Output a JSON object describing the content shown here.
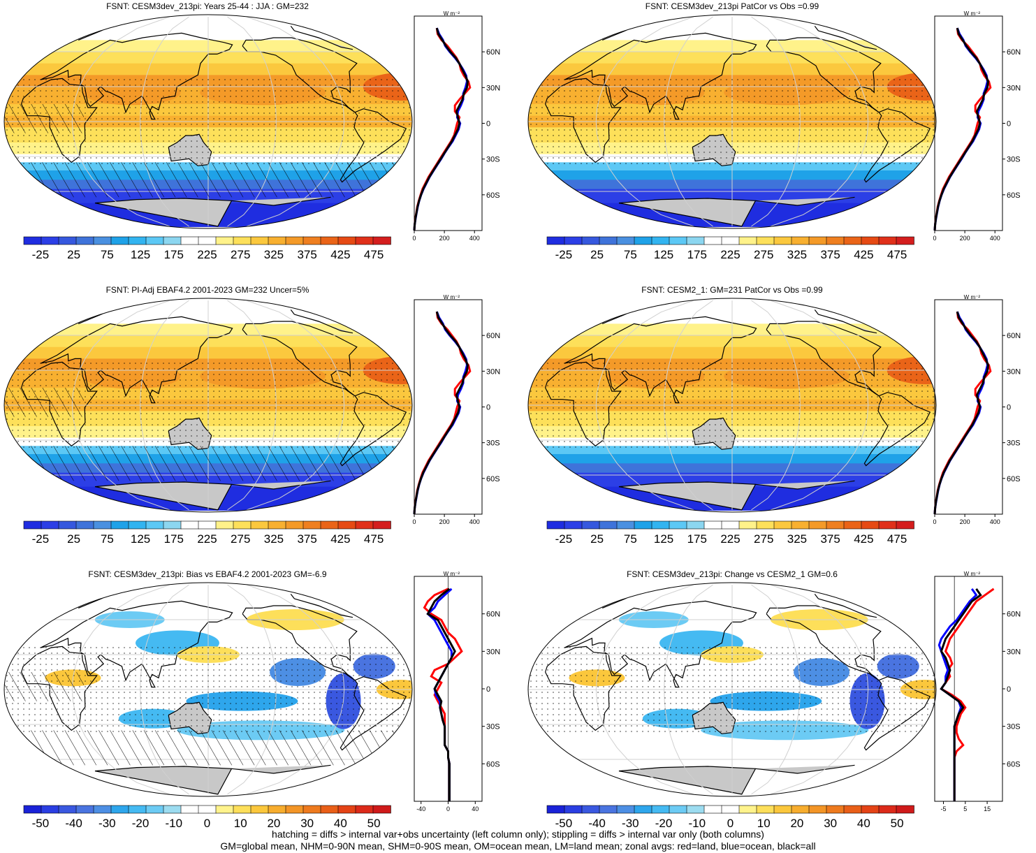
{
  "panels": [
    {
      "title": "FSNT: CESM3dev_213pi: Years 25-44 : JJA : GM=232",
      "kind": "mean",
      "hatch": true,
      "colorbar": {
        "labels": [
          "-25",
          "25",
          "75",
          "125",
          "175",
          "225",
          "275",
          "325",
          "375",
          "425",
          "475"
        ]
      },
      "zonal": {
        "unit": "W m⁻²",
        "xticks": [
          "0",
          "200",
          "400"
        ],
        "yticks": [
          "60N",
          "30N",
          "0",
          "30S",
          "60S"
        ]
      }
    },
    {
      "title": "FSNT: CESM3dev_213pi PatCor vs Obs =0.99",
      "kind": "mean",
      "hatch": false,
      "colorbar": {
        "labels": [
          "-25",
          "25",
          "75",
          "125",
          "175",
          "225",
          "275",
          "325",
          "375",
          "425",
          "475"
        ]
      },
      "zonal": {
        "unit": "W m⁻²",
        "xticks": [
          "0",
          "200",
          "400"
        ],
        "yticks": [
          "60N",
          "30N",
          "0",
          "30S",
          "60S"
        ]
      }
    },
    {
      "title": "FSNT: PI-Adj EBAF4.2 2001-2023 GM=232 Uncer=5%",
      "kind": "mean",
      "hatch": true,
      "colorbar": {
        "labels": [
          "-25",
          "25",
          "75",
          "125",
          "175",
          "225",
          "275",
          "325",
          "375",
          "425",
          "475"
        ]
      },
      "zonal": {
        "unit": "W m⁻²",
        "xticks": [
          "0",
          "200",
          "400"
        ],
        "yticks": [
          "60N",
          "30N",
          "0",
          "30S",
          "60S"
        ]
      }
    },
    {
      "title": "FSNT: CESM2_1: GM=231 PatCor vs Obs =0.99",
      "kind": "mean",
      "hatch": false,
      "colorbar": {
        "labels": [
          "-25",
          "25",
          "75",
          "125",
          "175",
          "225",
          "275",
          "325",
          "375",
          "425",
          "475"
        ]
      },
      "zonal": {
        "unit": "W m⁻²",
        "xticks": [
          "0",
          "200",
          "400"
        ],
        "yticks": [
          "60N",
          "30N",
          "0",
          "30S",
          "60S"
        ]
      }
    },
    {
      "title": "FSNT: CESM3dev_213pi: Bias vs EBAF4.2 2001-2023 GM=-6.9",
      "kind": "diff",
      "hatch": true,
      "colorbar": {
        "labels": [
          "-50",
          "-40",
          "-30",
          "-20",
          "-10",
          "0",
          "10",
          "20",
          "30",
          "40",
          "50"
        ]
      },
      "zonal": {
        "unit": "W m⁻²",
        "xticks": [
          "-40",
          "0",
          "40"
        ],
        "yticks": [
          "60N",
          "30N",
          "0",
          "30S",
          "60S"
        ]
      }
    },
    {
      "title": "FSNT: CESM3dev_213pi: Change vs CESM2_1 GM=0.6",
      "kind": "diff",
      "hatch": false,
      "colorbar": {
        "labels": [
          "-50",
          "-40",
          "-30",
          "-20",
          "-10",
          "0",
          "10",
          "20",
          "30",
          "40",
          "50"
        ]
      },
      "zonal": {
        "unit": "W m⁻²",
        "xticks": [
          "-5",
          "5",
          "15"
        ],
        "yticks": [
          "60N",
          "30N",
          "0",
          "30S",
          "60S"
        ]
      }
    }
  ],
  "colors": {
    "mean_scale": [
      "#1f2de0",
      "#2c3fe6",
      "#3658de",
      "#3f73da",
      "#4a90e0",
      "#1fa2e8",
      "#32b4f0",
      "#5cc8f5",
      "#8cd6f0",
      "#ffffff",
      "#ffffff",
      "#fff28a",
      "#fde05a",
      "#fbc83e",
      "#f8b030",
      "#f49a28",
      "#ef7f20",
      "#ea6418",
      "#e64a14",
      "#e0301a",
      "#d41e1e"
    ],
    "diff_scale": [
      "#1a22d8",
      "#2a3ee2",
      "#3a58e0",
      "#4a74e0",
      "#4d8fe4",
      "#2ea6ec",
      "#45baf2",
      "#6ccbf4",
      "#9cdcf0",
      "#ffffff",
      "#ffffff",
      "#fff38c",
      "#fddf5a",
      "#fbc73c",
      "#f7ad2e",
      "#f39526",
      "#ee7a1e",
      "#e95f18",
      "#e44316",
      "#dc2a1a",
      "#cf1a1a"
    ],
    "land_gray": "#c8c8c8",
    "zonal_land": "#ff0000",
    "zonal_ocean": "#0000ff",
    "zonal_all": "#000000"
  },
  "zonal_data": {
    "lat": [
      80,
      75,
      70,
      65,
      60,
      55,
      50,
      45,
      40,
      35,
      30,
      25,
      20,
      15,
      10,
      5,
      0,
      -5,
      -10,
      -15,
      -20,
      -25,
      -30,
      -35,
      -40,
      -45,
      -50,
      -55,
      -60,
      -65,
      -70,
      -75,
      -80,
      -85,
      -90
    ],
    "mean": {
      "all": [
        150,
        160,
        185,
        210,
        240,
        275,
        300,
        320,
        340,
        355,
        350,
        330,
        320,
        300,
        280,
        290,
        300,
        290,
        270,
        250,
        225,
        200,
        175,
        150,
        125,
        100,
        80,
        60,
        45,
        32,
        22,
        15,
        8,
        3,
        0
      ],
      "land": [
        150,
        155,
        180,
        220,
        250,
        280,
        300,
        310,
        330,
        360,
        370,
        335,
        300,
        270,
        270,
        300,
        285,
        275,
        265,
        245,
        220,
        195,
        170,
        145,
        120,
        95,
        75,
        55,
        42,
        30,
        20,
        14,
        7,
        3,
        0
      ],
      "ocean": [
        150,
        165,
        190,
        205,
        235,
        270,
        300,
        325,
        345,
        350,
        340,
        325,
        325,
        310,
        290,
        285,
        305,
        295,
        275,
        255,
        228,
        202,
        178,
        152,
        127,
        102,
        82,
        62,
        46,
        33,
        23,
        16,
        9,
        3,
        0
      ]
    },
    "bias": {
      "all": [
        2,
        -10,
        -20,
        -25,
        -30,
        -15,
        -10,
        -5,
        0,
        5,
        10,
        5,
        0,
        -5,
        -10,
        -15,
        -20,
        -15,
        -10,
        -12,
        -10,
        -8,
        -5,
        -5,
        -5,
        -5,
        0,
        0,
        2,
        2,
        2,
        2,
        2,
        2,
        2
      ],
      "land": [
        0,
        -20,
        -30,
        -35,
        -25,
        -10,
        -5,
        0,
        10,
        15,
        20,
        10,
        0,
        -20,
        -25,
        -10,
        -15,
        -20,
        -15,
        -10,
        -5,
        -5,
        -5,
        -5,
        -5,
        -5,
        0,
        0,
        2,
        2,
        2,
        2,
        2,
        2,
        2
      ],
      "ocean": [
        5,
        -5,
        -15,
        -20,
        -30,
        -20,
        -15,
        -10,
        -5,
        0,
        5,
        5,
        0,
        -5,
        -10,
        -15,
        -20,
        -18,
        -12,
        -12,
        -10,
        -8,
        -5,
        -5,
        -5,
        -5,
        0,
        0,
        2,
        2,
        2,
        2,
        2,
        2,
        2
      ]
    },
    "change": {
      "all": [
        10,
        12,
        8,
        6,
        4,
        2,
        0,
        -2,
        -4,
        -5,
        -6,
        -4,
        -3,
        -2,
        -3,
        -4,
        -6,
        -2,
        2,
        4,
        2,
        1,
        0,
        0,
        0,
        0,
        0,
        0,
        0,
        0,
        0,
        0,
        0,
        0,
        0
      ],
      "land": [
        18,
        14,
        10,
        8,
        6,
        4,
        2,
        0,
        -2,
        -3,
        -4,
        -2,
        -1,
        -3,
        -2,
        -4,
        -6,
        -1,
        3,
        5,
        3,
        2,
        1,
        1,
        2,
        4,
        1,
        0,
        0,
        0,
        0,
        0,
        0,
        0,
        0
      ],
      "ocean": [
        8,
        10,
        7,
        5,
        3,
        1,
        -2,
        -4,
        -6,
        -7,
        -6,
        -5,
        -4,
        -3,
        -4,
        -4,
        -6,
        -2,
        2,
        3,
        2,
        1,
        0,
        0,
        0,
        0,
        0,
        0,
        0,
        0,
        0,
        0,
        0,
        0,
        0
      ]
    }
  },
  "footnote": {
    "line1": "hatching = diffs > internal var+obs uncertainty (left column only); stippling = diffs > internal var only (both columns)",
    "line2": "GM=global mean, NHM=0-90N mean, SHM=0-90S mean, OM=ocean mean, LM=land mean; zonal avgs: red=land, blue=ocean, black=all"
  }
}
